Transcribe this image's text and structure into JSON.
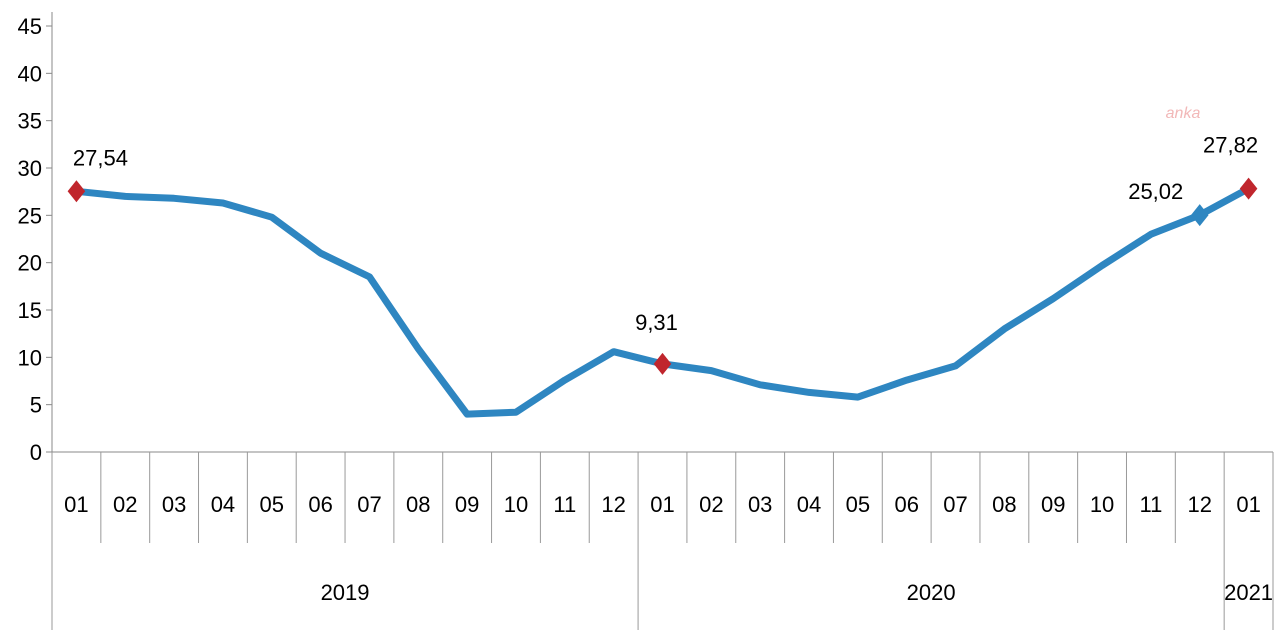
{
  "chart_data": {
    "type": "line",
    "title": "",
    "xlabel": "",
    "ylabel": "",
    "ylim": [
      0,
      45
    ],
    "yticks": [
      "0",
      "5",
      "10",
      "15",
      "20",
      "25",
      "30",
      "35",
      "40",
      "45"
    ],
    "grid": false,
    "categories": [
      "01",
      "02",
      "03",
      "04",
      "05",
      "06",
      "07",
      "08",
      "09",
      "10",
      "11",
      "12",
      "01",
      "02",
      "03",
      "04",
      "05",
      "06",
      "07",
      "08",
      "09",
      "10",
      "11",
      "12",
      "01"
    ],
    "year_groups": [
      {
        "label": "2019",
        "count": 12
      },
      {
        "label": "2020",
        "count": 12
      },
      {
        "label": "2021",
        "count": 1
      }
    ],
    "series": [
      {
        "color": "#2e86c1",
        "values": [
          27.54,
          27.0,
          26.8,
          26.3,
          24.8,
          21.0,
          18.5,
          10.9,
          4.0,
          4.2,
          7.6,
          10.6,
          9.31,
          8.6,
          7.1,
          6.3,
          5.8,
          7.6,
          9.1,
          13.0,
          16.2,
          19.7,
          23.0,
          25.02,
          27.82
        ]
      }
    ],
    "markers": [
      {
        "index": 0,
        "shape": "diamond",
        "color": "#c0262d",
        "label": "27,54"
      },
      {
        "index": 12,
        "shape": "diamond",
        "color": "#c0262d",
        "label": "9,31"
      },
      {
        "index": 23,
        "shape": "diamond",
        "color": "#2e86c1",
        "label": "25,02"
      },
      {
        "index": 24,
        "shape": "diamond",
        "color": "#c0262d",
        "label": "27,82"
      }
    ],
    "watermark": "anka"
  }
}
